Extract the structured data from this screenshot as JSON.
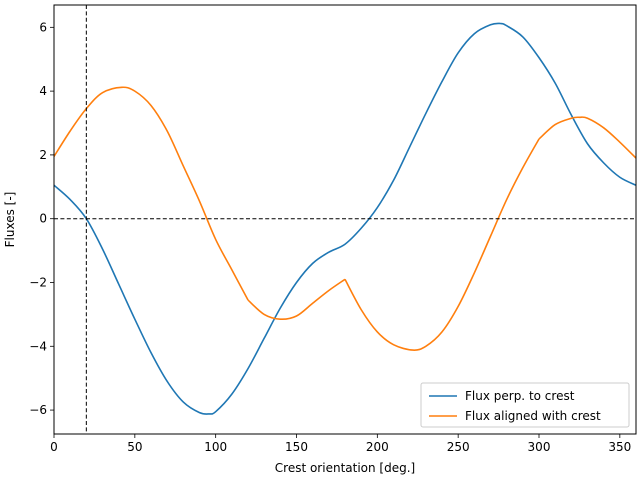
{
  "chart_data": {
    "type": "line",
    "title": "",
    "xlabel": "Crest orientation [deg.]",
    "ylabel": "Fluxes [-]",
    "xlim": [
      0,
      360
    ],
    "ylim": [
      -6.75,
      6.7
    ],
    "xticks": [
      0,
      50,
      100,
      150,
      200,
      250,
      300,
      350
    ],
    "yticks": [
      -6,
      -4,
      -2,
      0,
      2,
      4,
      6
    ],
    "grid": false,
    "legend_position": "lower-right",
    "reference_lines": {
      "horizontal_y": 0,
      "vertical_x": 20
    },
    "series": [
      {
        "name": "Flux perp. to crest",
        "color": "#1f77b4",
        "x": [
          0,
          10,
          20,
          30,
          40,
          50,
          60,
          70,
          80,
          90,
          96,
          100,
          110,
          120,
          130,
          140,
          150,
          160,
          170,
          180,
          190,
          200,
          210,
          220,
          230,
          240,
          250,
          260,
          270,
          276,
          280,
          290,
          300,
          310,
          320,
          330,
          340,
          350,
          360
        ],
        "y": [
          1.05,
          0.6,
          0.0,
          -0.95,
          -2.05,
          -3.15,
          -4.2,
          -5.1,
          -5.75,
          -6.08,
          -6.12,
          -6.05,
          -5.5,
          -4.7,
          -3.75,
          -2.8,
          -2.0,
          -1.4,
          -1.05,
          -0.8,
          -0.3,
          0.35,
          1.2,
          2.25,
          3.3,
          4.3,
          5.2,
          5.8,
          6.08,
          6.12,
          6.05,
          5.7,
          5.05,
          4.25,
          3.25,
          2.35,
          1.75,
          1.3,
          1.05
        ]
      },
      {
        "name": "Flux aligned with crest",
        "color": "#ff7f0e",
        "x": [
          0,
          10,
          20,
          30,
          42,
          50,
          60,
          70,
          80,
          90,
          100,
          110,
          120,
          130,
          140,
          150,
          160,
          170,
          180,
          190,
          200,
          210,
          222,
          230,
          240,
          250,
          260,
          270,
          280,
          290,
          300,
          310,
          320,
          325,
          330,
          340,
          350,
          360
        ],
        "y": [
          1.95,
          2.75,
          3.45,
          3.95,
          4.12,
          4.0,
          3.55,
          2.75,
          1.65,
          0.55,
          -0.65,
          -1.6,
          -2.55,
          -3.0,
          -3.15,
          -3.05,
          -2.65,
          -2.25,
          -1.9,
          -2.85,
          -3.55,
          -3.95,
          -4.12,
          -4.0,
          -3.55,
          -2.75,
          -1.7,
          -0.55,
          0.6,
          1.6,
          2.5,
          2.95,
          3.15,
          3.18,
          3.15,
          2.85,
          2.4,
          1.9
        ]
      }
    ]
  }
}
